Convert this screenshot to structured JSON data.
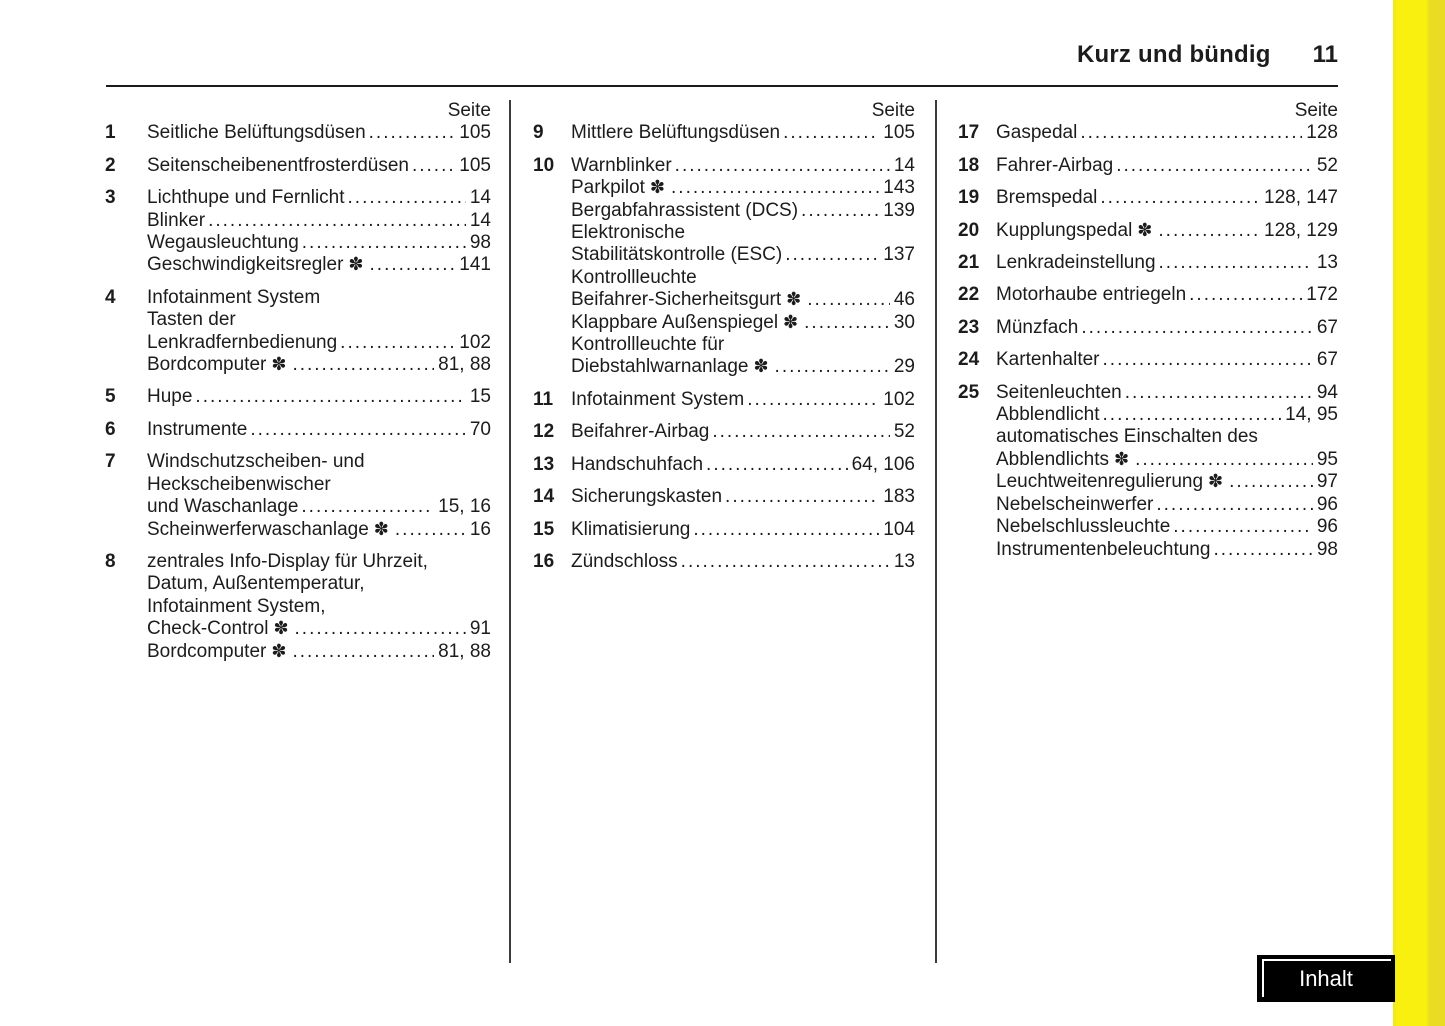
{
  "header": {
    "title": "Kurz und bündig",
    "page_number": "11"
  },
  "symbols": {
    "optional_flower": "✽"
  },
  "footer": {
    "inhalt_label": "Inhalt"
  },
  "colors": {
    "stripe_yellow": "#f9f00f",
    "stripe_yellow_dark": "#e9dc22",
    "text": "#1c1c1c",
    "rule": "#1a1a1a",
    "separator": "#3c3c3c",
    "button_bg": "#000000",
    "button_text": "#ffffff",
    "page_bg": "#ffffff"
  },
  "columns": [
    {
      "page_label": "Seite",
      "items": [
        {
          "num": "1",
          "lines": [
            {
              "text": "Seitliche Belüftungsdüsen",
              "pages": "105"
            }
          ]
        },
        {
          "num": "2",
          "lines": [
            {
              "text": "Seitenscheibenentfrosterdüsen",
              "pages": "105"
            }
          ]
        },
        {
          "num": "3",
          "lines": [
            {
              "text": "Lichthupe und Fernlicht",
              "pages": "14"
            },
            {
              "text": "Blinker",
              "pages": "14"
            },
            {
              "text": "Wegausleuchtung",
              "pages": "98"
            },
            {
              "text": "Geschwindigkeitsregler",
              "flower": true,
              "pages": "141"
            }
          ]
        },
        {
          "num": "4",
          "lines": [
            {
              "text": "Infotainment System"
            },
            {
              "text": "Tasten der"
            },
            {
              "text": "Lenkradfernbedienung",
              "pages": "102"
            },
            {
              "text": "Bordcomputer",
              "flower": true,
              "pages": "81, 88"
            }
          ]
        },
        {
          "num": "5",
          "lines": [
            {
              "text": "Hupe",
              "pages": "15"
            }
          ]
        },
        {
          "num": "6",
          "lines": [
            {
              "text": "Instrumente",
              "pages": "70"
            }
          ]
        },
        {
          "num": "7",
          "lines": [
            {
              "text": "Windschutzscheiben- und"
            },
            {
              "text": "Heckscheibenwischer"
            },
            {
              "text": "und Waschanlage",
              "pages": "15, 16"
            },
            {
              "text": "Scheinwerferwaschanlage",
              "flower": true,
              "pages": "16"
            }
          ]
        },
        {
          "num": "8",
          "lines": [
            {
              "text": "zentrales Info-Display für Uhrzeit,"
            },
            {
              "text": "Datum, Außentemperatur,"
            },
            {
              "text": "Infotainment System,"
            },
            {
              "text": "Check-Control",
              "flower": true,
              "pages": "91"
            },
            {
              "text": "Bordcomputer",
              "flower": true,
              "pages": "81, 88"
            }
          ]
        }
      ]
    },
    {
      "page_label": "Seite",
      "items": [
        {
          "num": "9",
          "lines": [
            {
              "text": "Mittlere Belüftungsdüsen",
              "pages": "105"
            }
          ]
        },
        {
          "num": "10",
          "lines": [
            {
              "text": "Warnblinker",
              "pages": "14"
            },
            {
              "text": "Parkpilot",
              "flower": true,
              "pages": "143"
            },
            {
              "text": "Bergabfahrassistent (DCS)",
              "pages": "139"
            },
            {
              "text": "Elektronische"
            },
            {
              "text": "Stabilitätskontrolle (ESC)",
              "pages": "137"
            },
            {
              "text": "Kontrollleuchte"
            },
            {
              "text": "Beifahrer-Sicherheitsgurt",
              "flower": true,
              "pages": "46"
            },
            {
              "text": "Klappbare Außenspiegel",
              "flower": true,
              "pages": "30"
            },
            {
              "text": "Kontrollleuchte für"
            },
            {
              "text": "Diebstahlwarnanlage",
              "flower": true,
              "pages": "29"
            }
          ]
        },
        {
          "num": "11",
          "lines": [
            {
              "text": "Infotainment System",
              "pages": "102"
            }
          ]
        },
        {
          "num": "12",
          "lines": [
            {
              "text": "Beifahrer-Airbag",
              "pages": "52"
            }
          ]
        },
        {
          "num": "13",
          "lines": [
            {
              "text": "Handschuhfach",
              "pages": "64, 106"
            }
          ]
        },
        {
          "num": "14",
          "lines": [
            {
              "text": "Sicherungskasten",
              "pages": "183"
            }
          ]
        },
        {
          "num": "15",
          "lines": [
            {
              "text": "Klimatisierung",
              "pages": "104"
            }
          ]
        },
        {
          "num": "16",
          "lines": [
            {
              "text": "Zündschloss",
              "pages": "13"
            }
          ]
        }
      ]
    },
    {
      "page_label": "Seite",
      "items": [
        {
          "num": "17",
          "lines": [
            {
              "text": "Gaspedal",
              "pages": "128"
            }
          ]
        },
        {
          "num": "18",
          "lines": [
            {
              "text": "Fahrer-Airbag",
              "pages": "52"
            }
          ]
        },
        {
          "num": "19",
          "lines": [
            {
              "text": "Bremspedal",
              "pages": "128, 147"
            }
          ]
        },
        {
          "num": "20",
          "lines": [
            {
              "text": "Kupplungspedal",
              "flower": true,
              "pages": "128, 129"
            }
          ]
        },
        {
          "num": "21",
          "lines": [
            {
              "text": "Lenkradeinstellung",
              "pages": "13"
            }
          ]
        },
        {
          "num": "22",
          "lines": [
            {
              "text": "Motorhaube entriegeln",
              "pages": "172"
            }
          ]
        },
        {
          "num": "23",
          "lines": [
            {
              "text": "Münzfach",
              "pages": "67"
            }
          ]
        },
        {
          "num": "24",
          "lines": [
            {
              "text": "Kartenhalter",
              "pages": "67"
            }
          ]
        },
        {
          "num": "25",
          "lines": [
            {
              "text": "Seitenleuchten",
              "pages": "94"
            },
            {
              "text": "Abblendlicht",
              "pages": "14, 95"
            },
            {
              "text": "automatisches Einschalten des"
            },
            {
              "text": "Abblendlichts",
              "flower": true,
              "pages": "95"
            },
            {
              "text": "Leuchtweitenregulierung",
              "flower": true,
              "pages": "97"
            },
            {
              "text": "Nebelscheinwerfer",
              "pages": "96"
            },
            {
              "text": "Nebelschlussleuchte",
              "pages": "96"
            },
            {
              "text": "Instrumentenbeleuchtung",
              "pages": "98"
            }
          ]
        }
      ]
    }
  ]
}
